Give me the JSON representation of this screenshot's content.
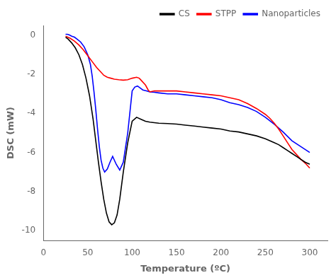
{
  "chart_data": {
    "type": "line",
    "xlabel": "Temperature (ºC)",
    "ylabel": "DSC (mW)",
    "xlim": [
      0,
      320
    ],
    "ylim": [
      -10.5,
      0.5
    ],
    "xticks": [
      0,
      50,
      100,
      150,
      200,
      250,
      300
    ],
    "yticks": [
      0,
      -2,
      -4,
      -6,
      -8,
      -10
    ],
    "grid": false,
    "legend": "upper right",
    "series": [
      {
        "name": "CS",
        "color": "black",
        "x": [
          25,
          28,
          32,
          36,
          40,
          44,
          48,
          52,
          56,
          59,
          62,
          65,
          68,
          71,
          74,
          77,
          80,
          83,
          86,
          90,
          95,
          100,
          105,
          110,
          115,
          120,
          130,
          140,
          150,
          160,
          170,
          180,
          190,
          200,
          210,
          220,
          230,
          240,
          250,
          255,
          260,
          265,
          270,
          275,
          280,
          285,
          290,
          295,
          300
        ],
        "values": [
          -0.1,
          -0.2,
          -0.4,
          -0.65,
          -1.0,
          -1.5,
          -2.2,
          -3.1,
          -4.3,
          -5.4,
          -6.5,
          -7.5,
          -8.4,
          -9.1,
          -9.55,
          -9.7,
          -9.6,
          -9.2,
          -8.4,
          -7.0,
          -5.5,
          -4.4,
          -4.2,
          -4.3,
          -4.4,
          -4.45,
          -4.5,
          -4.52,
          -4.55,
          -4.6,
          -4.65,
          -4.7,
          -4.75,
          -4.8,
          -4.9,
          -4.95,
          -5.05,
          -5.15,
          -5.3,
          -5.4,
          -5.5,
          -5.6,
          -5.75,
          -5.9,
          -6.05,
          -6.2,
          -6.35,
          -6.5,
          -6.6
        ]
      },
      {
        "name": "STPP",
        "color": "red",
        "x": [
          25,
          30,
          35,
          40,
          45,
          50,
          55,
          60,
          65,
          68,
          72,
          76,
          80,
          85,
          90,
          95,
          100,
          105,
          108,
          110,
          115,
          118,
          120,
          125,
          130,
          140,
          150,
          160,
          170,
          180,
          190,
          200,
          210,
          220,
          230,
          240,
          250,
          255,
          260,
          265,
          270,
          275,
          280,
          285,
          290,
          295,
          300
        ],
        "values": [
          -0.05,
          -0.15,
          -0.3,
          -0.5,
          -0.75,
          -1.05,
          -1.35,
          -1.65,
          -1.9,
          -2.05,
          -2.15,
          -2.2,
          -2.25,
          -2.28,
          -2.3,
          -2.28,
          -2.2,
          -2.15,
          -2.2,
          -2.3,
          -2.55,
          -2.8,
          -2.9,
          -2.85,
          -2.85,
          -2.85,
          -2.85,
          -2.9,
          -2.95,
          -3.0,
          -3.05,
          -3.1,
          -3.2,
          -3.3,
          -3.5,
          -3.75,
          -4.05,
          -4.25,
          -4.5,
          -4.8,
          -5.15,
          -5.5,
          -5.85,
          -6.1,
          -6.35,
          -6.55,
          -6.8
        ]
      },
      {
        "name": "Nanoparticles",
        "color": "blue",
        "x": [
          25,
          27,
          29,
          32,
          35,
          38,
          42,
          46,
          50,
          53,
          55,
          57,
          59,
          61,
          63,
          65,
          67,
          69,
          72,
          75,
          78,
          82,
          86,
          90,
          95,
          100,
          103,
          106,
          109,
          112,
          116,
          120,
          125,
          130,
          140,
          150,
          160,
          170,
          180,
          190,
          200,
          210,
          220,
          230,
          240,
          250,
          260,
          270,
          280,
          290,
          300
        ],
        "values": [
          0.05,
          0.05,
          0.02,
          -0.05,
          -0.1,
          -0.2,
          -0.35,
          -0.6,
          -1.0,
          -1.5,
          -2.1,
          -2.9,
          -3.8,
          -4.8,
          -5.7,
          -6.4,
          -6.8,
          -7.0,
          -6.85,
          -6.5,
          -6.2,
          -6.6,
          -6.9,
          -6.5,
          -5.0,
          -2.85,
          -2.65,
          -2.6,
          -2.7,
          -2.8,
          -2.85,
          -2.9,
          -2.92,
          -2.95,
          -3.0,
          -3.0,
          -3.05,
          -3.1,
          -3.15,
          -3.2,
          -3.3,
          -3.45,
          -3.55,
          -3.7,
          -3.9,
          -4.2,
          -4.55,
          -4.95,
          -5.4,
          -5.7,
          -6.0
        ]
      }
    ]
  }
}
